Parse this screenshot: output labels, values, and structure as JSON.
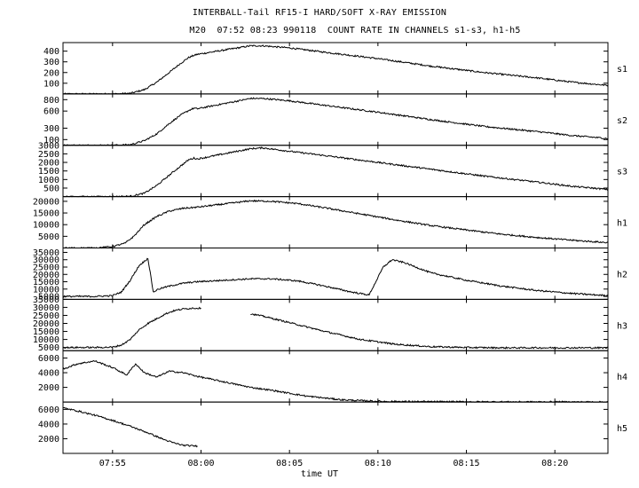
{
  "header": {
    "title": "INTERBALL-Tail RF15-I HARD/SOFT X-RAY EMISSION",
    "subtitle": "M20  07:52 08:23 990118  COUNT RATE IN CHANNELS s1-s3, h1-h5"
  },
  "chart_data": {
    "type": "line",
    "xlabel": "time UT",
    "x_tick_labels": [
      "07:55",
      "08:00",
      "08:05",
      "08:10",
      "08:15",
      "08:20"
    ],
    "x_ticks_min": [
      55,
      60,
      65,
      70,
      75,
      80
    ],
    "xlim_min": [
      52.2,
      83.0
    ],
    "data_gap_min": [
      60.0,
      62.8
    ],
    "panels": [
      {
        "name": "s1",
        "ylim": [
          0,
          480
        ],
        "ytick_labels": [
          "100",
          "200",
          "300",
          "400"
        ],
        "yticks": [
          100,
          200,
          300,
          400
        ],
        "x": [
          52.2,
          55.0,
          56.0,
          56.8,
          57.5,
          58.2,
          58.8,
          59.3,
          59.6,
          59.8,
          62.8,
          63.5,
          65.0,
          67.0,
          70.0,
          73.0,
          76.0,
          79.0,
          81.0,
          83.0
        ],
        "values": [
          0,
          0,
          5,
          40,
          110,
          200,
          280,
          340,
          360,
          370,
          450,
          450,
          430,
          390,
          330,
          260,
          200,
          150,
          110,
          80
        ]
      },
      {
        "name": "s2",
        "ylim": [
          0,
          900
        ],
        "ytick_labels": [
          "100",
          "300",
          "600",
          "800"
        ],
        "yticks": [
          100,
          300,
          600,
          800
        ],
        "x": [
          52.2,
          55.0,
          56.0,
          56.8,
          57.5,
          58.2,
          58.8,
          59.3,
          59.6,
          59.8,
          62.8,
          63.5,
          65.0,
          67.0,
          70.0,
          73.0,
          76.0,
          79.0,
          81.0,
          83.0
        ],
        "values": [
          0,
          0,
          10,
          80,
          200,
          380,
          520,
          610,
          650,
          640,
          820,
          820,
          780,
          700,
          580,
          450,
          330,
          240,
          170,
          120
        ]
      },
      {
        "name": "s3",
        "ylim": [
          0,
          3000
        ],
        "ytick_labels": [
          "500",
          "1000",
          "1500",
          "2000",
          "2500",
          "3000"
        ],
        "yticks": [
          500,
          1000,
          1500,
          2000,
          2500,
          3000
        ],
        "x": [
          52.2,
          55.0,
          56.0,
          56.8,
          57.5,
          58.2,
          58.8,
          59.3,
          59.6,
          59.8,
          62.8,
          63.5,
          65.0,
          67.0,
          70.0,
          73.0,
          76.0,
          79.0,
          81.0,
          83.0
        ],
        "values": [
          0,
          0,
          20,
          200,
          650,
          1250,
          1750,
          2150,
          2250,
          2200,
          2800,
          2850,
          2650,
          2400,
          2000,
          1600,
          1200,
          850,
          600,
          420
        ]
      },
      {
        "name": "h1",
        "ylim": [
          0,
          22000
        ],
        "ytick_labels": [
          "5000",
          "10000",
          "15000",
          "20000"
        ],
        "yticks": [
          5000,
          10000,
          15000,
          20000
        ],
        "x": [
          52.2,
          54.0,
          55.0,
          55.7,
          56.2,
          56.8,
          57.5,
          58.2,
          59.0,
          59.8,
          62.8,
          64.0,
          65.5,
          67.0,
          69.0,
          71.0,
          73.0,
          75.0,
          77.0,
          79.0,
          81.0,
          83.0
        ],
        "values": [
          0,
          0,
          600,
          2000,
          5000,
          10000,
          13500,
          15800,
          17000,
          17500,
          20200,
          20000,
          19000,
          17200,
          14600,
          12000,
          9600,
          7700,
          5900,
          4500,
          3300,
          2300
        ]
      },
      {
        "name": "h2",
        "ylim": [
          3000,
          38000
        ],
        "ytick_labels": [
          "5000",
          "10000",
          "15000",
          "20000",
          "25000",
          "30000",
          "35000"
        ],
        "yticks": [
          5000,
          10000,
          15000,
          20000,
          25000,
          30000,
          35000
        ],
        "x": [
          52.2,
          54.0,
          55.0,
          55.5,
          56.0,
          56.5,
          57.0,
          57.3,
          57.6,
          58.2,
          59.0,
          59.8,
          62.8,
          64.0,
          65.5,
          67.0,
          68.5,
          69.5,
          70.3,
          70.8,
          71.5,
          73.0,
          75.0,
          77.0,
          79.0,
          81.0,
          83.0
        ],
        "values": [
          5000,
          5000,
          5500,
          8000,
          16000,
          26000,
          31000,
          8000,
          10000,
          12000,
          14000,
          15000,
          17000,
          17000,
          15500,
          12000,
          8000,
          6000,
          25000,
          30000,
          28000,
          21000,
          16000,
          12000,
          9000,
          7000,
          5500
        ]
      },
      {
        "name": "h3",
        "ylim": [
          3000,
          35000
        ],
        "ytick_labels": [
          "5000",
          "10000",
          "15000",
          "20000",
          "25000",
          "30000",
          "35000"
        ],
        "yticks": [
          5000,
          10000,
          15000,
          20000,
          25000,
          30000,
          35000
        ],
        "x": [
          52.2,
          54.0,
          55.0,
          55.5,
          56.0,
          56.5,
          57.0,
          57.5,
          58.0,
          58.5,
          59.0,
          59.5,
          60.0,
          61.1,
          62.8,
          63.5,
          65.0,
          67.0,
          69.0,
          71.0,
          73.0,
          75.0,
          77.0,
          79.0,
          81.0,
          83.0
        ],
        "values": [
          5000,
          5000,
          5200,
          6500,
          10000,
          16000,
          20000,
          23000,
          26000,
          28000,
          29000,
          29500,
          29500,
          29500,
          26000,
          24500,
          20500,
          15000,
          10000,
          7000,
          5500,
          5000,
          4800,
          4800,
          4800,
          4800
        ]
      },
      {
        "name": "h4",
        "ylim": [
          0,
          7000
        ],
        "ytick_labels": [
          "2000",
          "4000",
          "6000"
        ],
        "yticks": [
          2000,
          4000,
          6000
        ],
        "x": [
          52.2,
          53.0,
          54.0,
          55.0,
          55.8,
          56.3,
          56.8,
          57.5,
          58.2,
          59.0,
          59.8,
          62.8,
          64.0,
          66.0,
          68.0,
          70.0,
          73.0,
          76.0,
          79.0,
          83.0
        ],
        "values": [
          4500,
          5200,
          5600,
          4700,
          3700,
          5200,
          4000,
          3400,
          4200,
          4000,
          3500,
          2000,
          1600,
          800,
          300,
          100,
          50,
          30,
          20,
          10
        ]
      },
      {
        "name": "h5",
        "ylim": [
          0,
          7000
        ],
        "ytick_labels": [
          "2000",
          "4000",
          "6000"
        ],
        "yticks": [
          2000,
          4000,
          6000
        ],
        "x": [
          52.2,
          53.0,
          54.0,
          55.0,
          56.0,
          57.0,
          58.0,
          58.5,
          59.0,
          59.8
        ],
        "values": [
          6200,
          5800,
          5200,
          4500,
          3700,
          2800,
          1800,
          1400,
          1100,
          1000
        ]
      }
    ]
  }
}
